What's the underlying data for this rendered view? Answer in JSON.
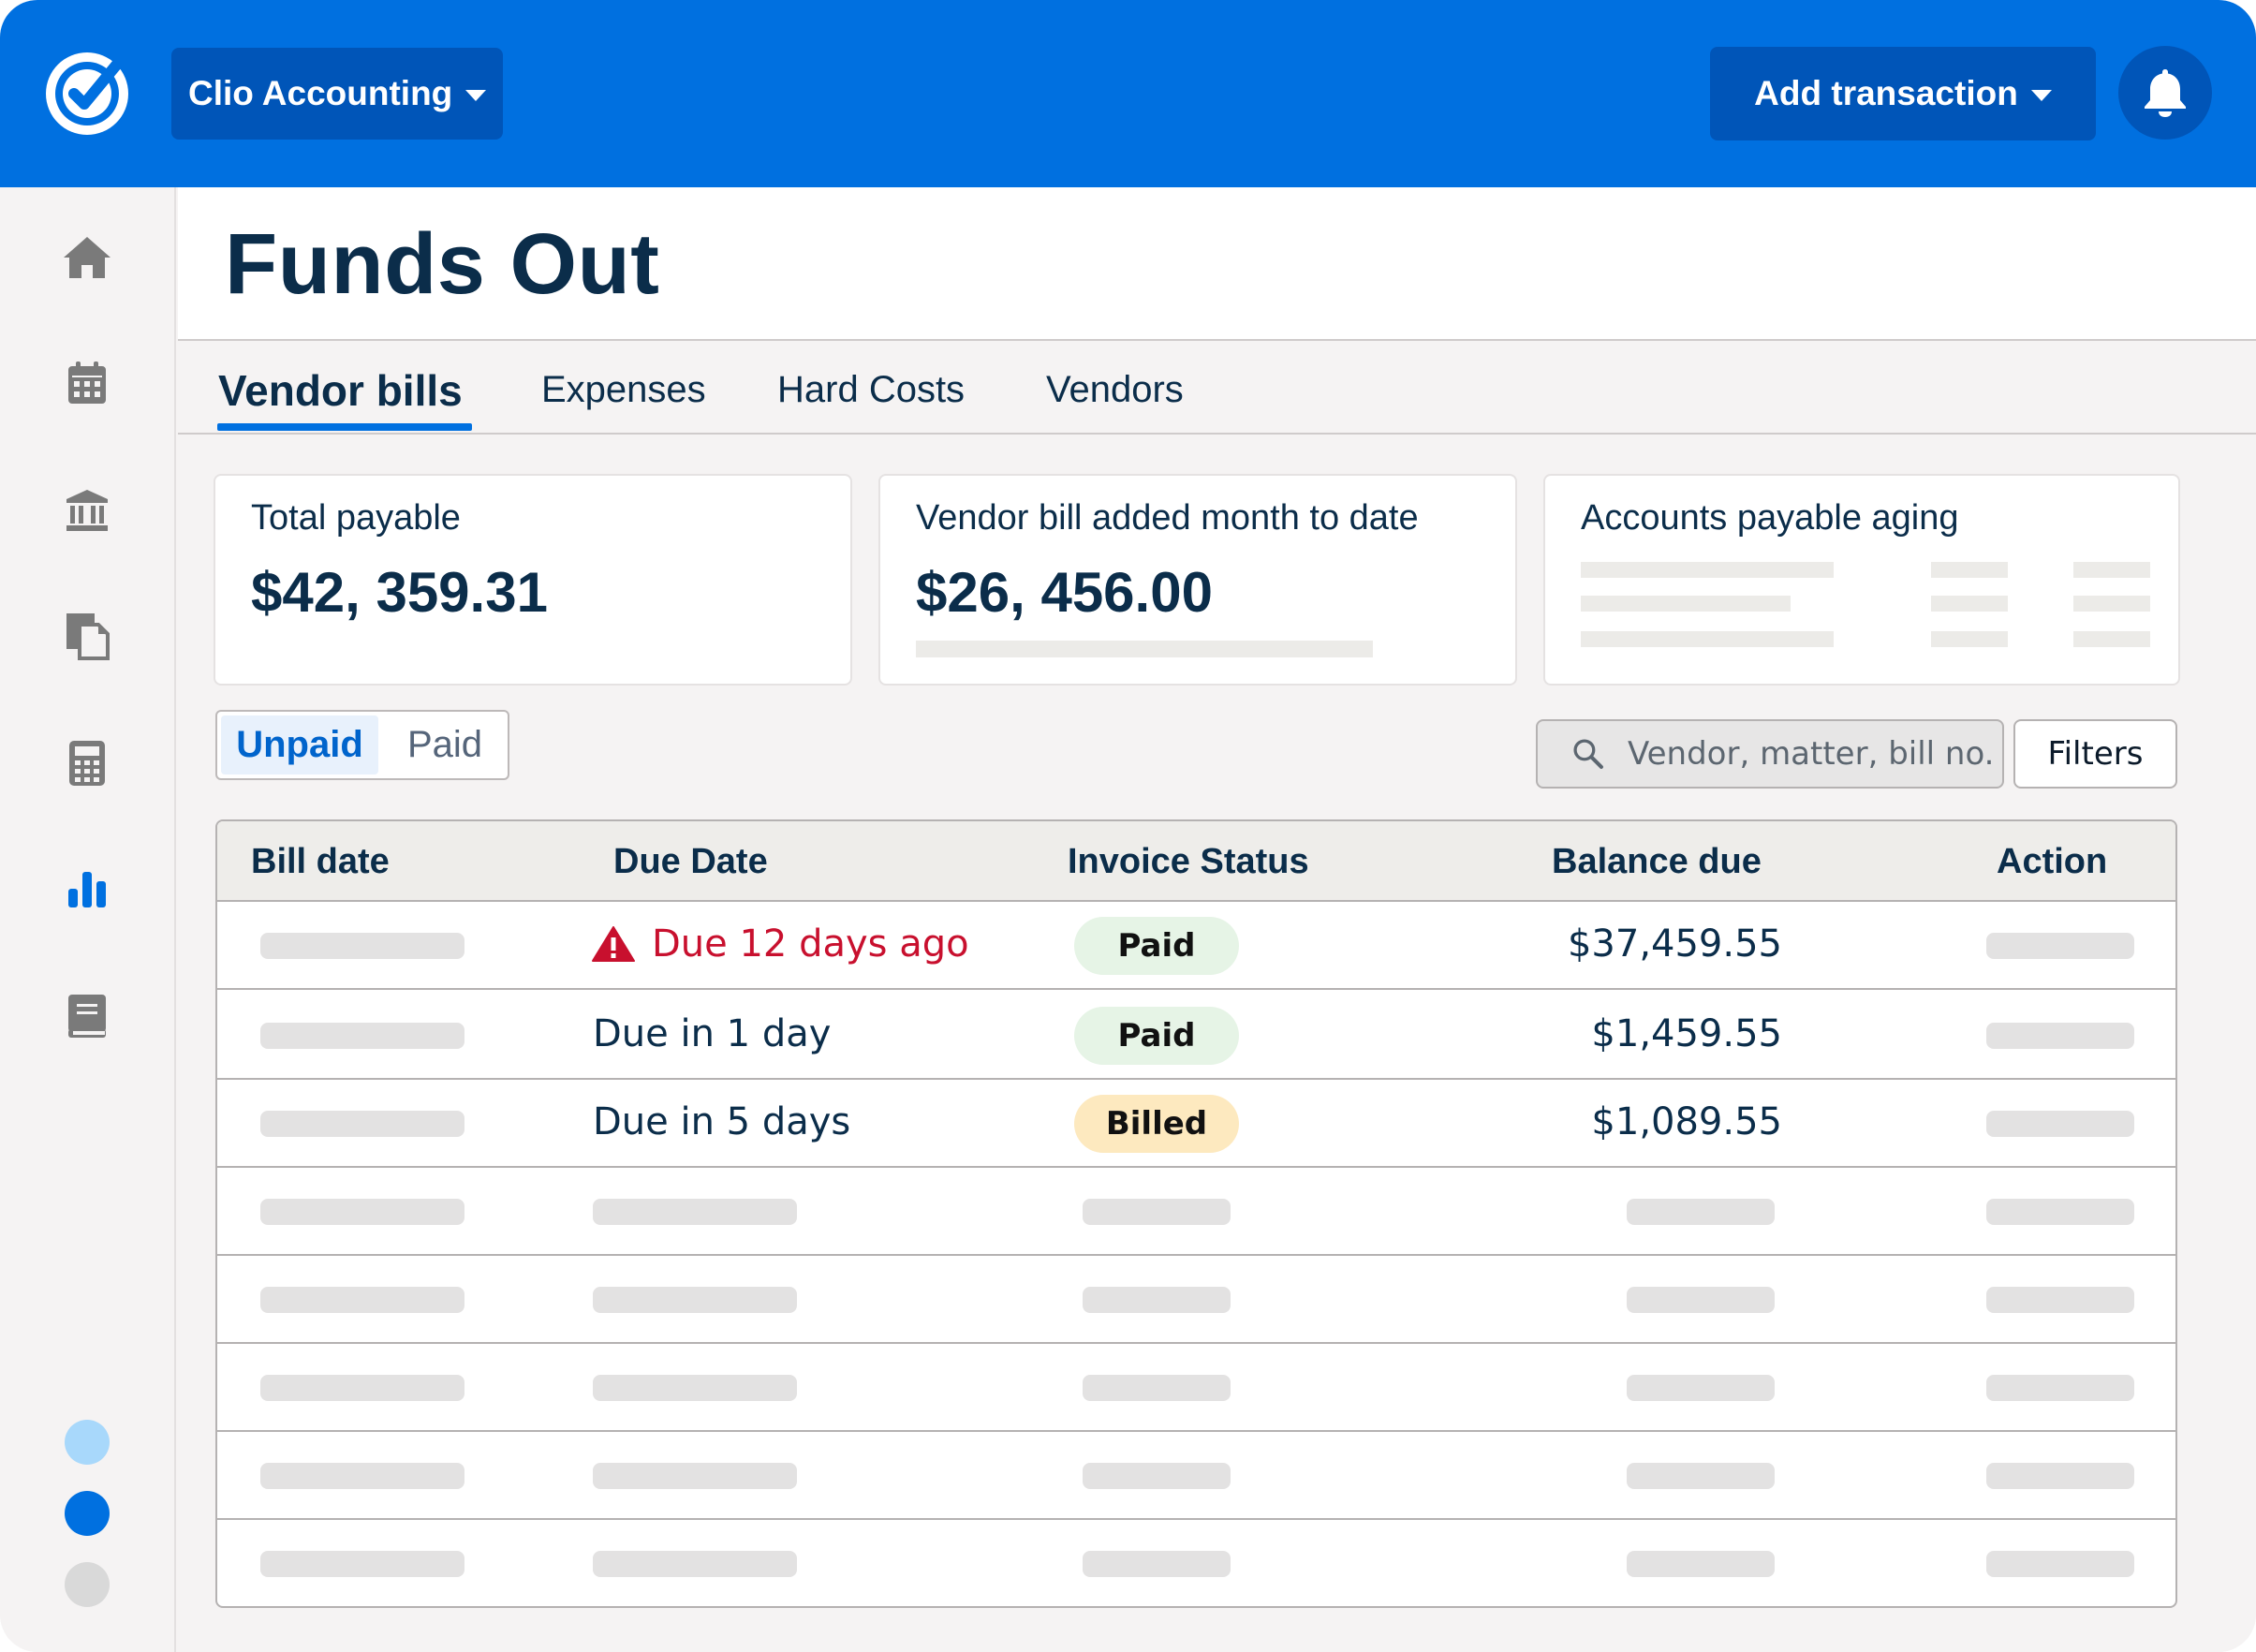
{
  "header": {
    "account_name": "Clio Accounting",
    "add_transaction_label": "Add transaction",
    "brand_color": "#0070e0"
  },
  "sidebar": {
    "items": [
      {
        "name": "home-icon",
        "active": false
      },
      {
        "name": "calendar-icon",
        "active": false
      },
      {
        "name": "bank-icon",
        "active": false
      },
      {
        "name": "documents-icon",
        "active": false
      },
      {
        "name": "calculator-icon",
        "active": false
      },
      {
        "name": "bar-chart-icon",
        "active": true
      },
      {
        "name": "book-icon",
        "active": false
      }
    ],
    "dot_colors": [
      "#a8d8fb",
      "#0070e0",
      "#d9d9d9"
    ]
  },
  "page": {
    "title": "Funds Out"
  },
  "tabs": [
    {
      "label": "Vendor bills",
      "active": true
    },
    {
      "label": "Expenses",
      "active": false
    },
    {
      "label": "Hard Costs",
      "active": false
    },
    {
      "label": "Vendors",
      "active": false
    }
  ],
  "cards": {
    "total_payable": {
      "label": "Total payable",
      "value": "$42, 359.31"
    },
    "month_to_date": {
      "label": "Vendor bill added month to date",
      "value": "$26, 456.00"
    },
    "aging": {
      "label": "Accounts payable aging"
    }
  },
  "filter": {
    "unpaid_label": "Unpaid",
    "paid_label": "Paid",
    "search_placeholder": "Vendor, matter, bill no.",
    "filters_label": "Filters"
  },
  "table": {
    "columns": [
      "Bill date",
      "Due Date",
      "Invoice Status",
      "Balance due",
      "Action"
    ],
    "rows": [
      {
        "due": "Due 12 days ago",
        "overdue": true,
        "status": "Paid",
        "status_color": "#e6f4e6",
        "balance": "$37,459.55"
      },
      {
        "due": "Due in 1 day",
        "overdue": false,
        "status": "Paid",
        "status_color": "#e6f4e6",
        "balance": "$1,459.55"
      },
      {
        "due": "Due in 5 days",
        "overdue": false,
        "status": "Billed",
        "status_color": "#fde9bf",
        "balance": "$1,089.55"
      }
    ]
  }
}
